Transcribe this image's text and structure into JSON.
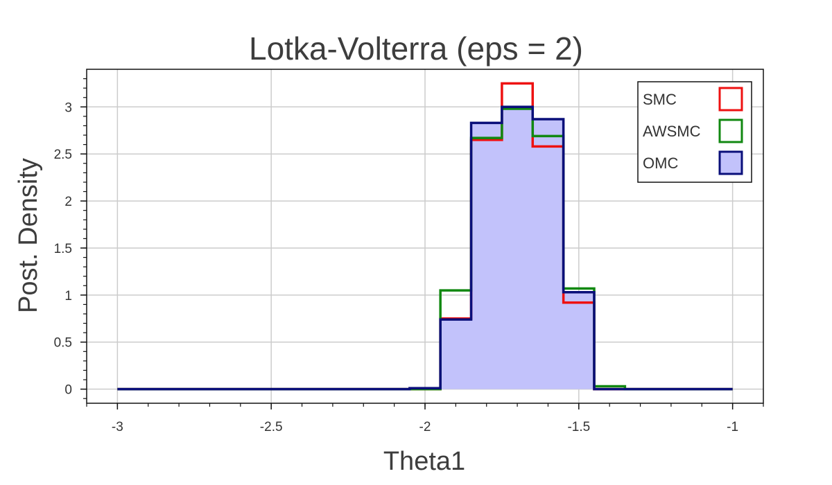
{
  "chart_data": {
    "type": "histogram",
    "title": "Lotka-Volterra  (eps = 2)",
    "xlabel": "Theta1",
    "ylabel": "Post. Density",
    "xlim": [
      -3.1,
      -0.9
    ],
    "ylim": [
      -0.15,
      3.4
    ],
    "xticks": [
      -3,
      -2.5,
      -2,
      -1.5,
      -1
    ],
    "xtick_labels": [
      "-3",
      "-2.5",
      "-2",
      "-1.5",
      "-1"
    ],
    "yticks": [
      0,
      0.5,
      1,
      1.5,
      2,
      2.5,
      3
    ],
    "ytick_labels": [
      "0",
      "0.5",
      "1",
      "1.5",
      "2",
      "2.5",
      "3"
    ],
    "grid": true,
    "legend_position": "top-right",
    "bin_edges": [
      -3,
      -2.05,
      -1.95,
      -1.85,
      -1.75,
      -1.65,
      -1.55,
      -1.45,
      -1.35,
      -1
    ],
    "series": [
      {
        "name": "SMC",
        "color": "#ee1111",
        "fill": "none",
        "values": [
          0,
          0,
          0.75,
          2.65,
          3.25,
          2.58,
          0.92,
          0,
          0
        ]
      },
      {
        "name": "AWSMC",
        "color": "#118811",
        "fill": "none",
        "values": [
          0,
          0,
          1.05,
          2.67,
          2.98,
          2.69,
          1.07,
          0.03,
          0
        ]
      },
      {
        "name": "OMC",
        "color": "#0a0f7a",
        "fill": "#c2c2fb",
        "values": [
          0,
          0.01,
          0.74,
          2.83,
          3.0,
          2.87,
          1.03,
          0,
          0
        ]
      }
    ]
  }
}
